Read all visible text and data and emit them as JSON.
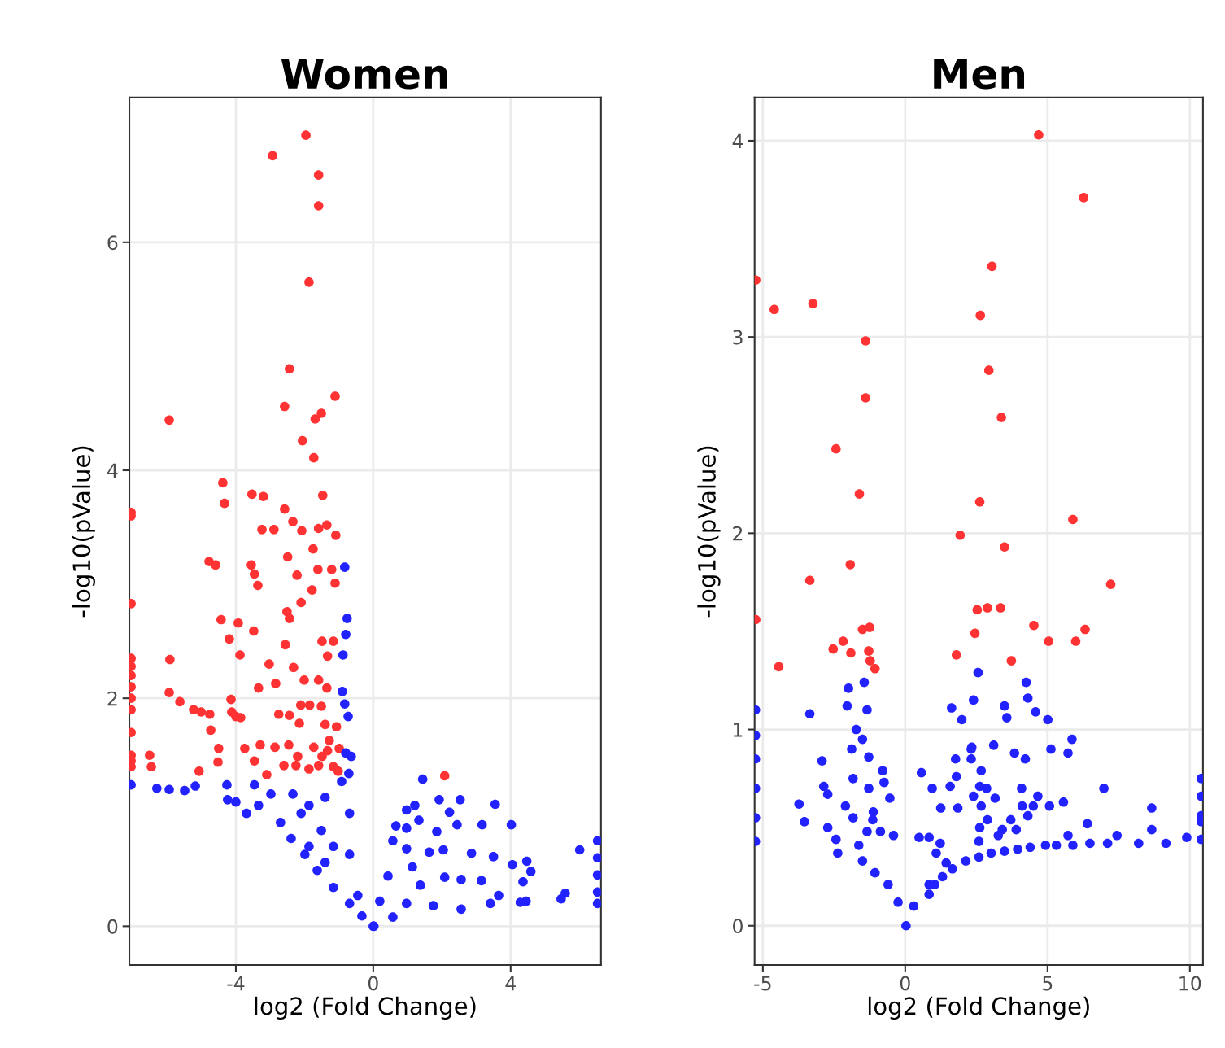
{
  "chart_data": [
    {
      "type": "scatter",
      "title": "Women",
      "xlabel": "log2 (Fold Change)",
      "ylabel": "-log10(pValue)",
      "xlim": [
        -7.1,
        6.63
      ],
      "ylim": [
        -0.34,
        7.27
      ],
      "xticks": [
        -4,
        0,
        4
      ],
      "yticks": [
        0,
        2,
        4,
        6
      ],
      "grid": true,
      "marker": "circle",
      "series": [
        {
          "color": "#ff3333",
          "x": [
            -1.96,
            -2.93,
            -1.59,
            -1.59,
            -1.87,
            -5.94,
            -2.44,
            -2.58,
            -1.11,
            -1.51,
            -1.69,
            -2.06,
            -1.73,
            -4.38,
            -4.33,
            -3.53,
            -3.2,
            -1.47,
            -2.58,
            -2.34,
            -3.24,
            -2.89,
            -2.08,
            -1.59,
            -1.35,
            -1.09,
            -1.75,
            -2.49,
            -4.78,
            -4.59,
            -3.55,
            -3.46,
            -3.36,
            -2.22,
            -1.61,
            -1.21,
            -1.11,
            -1.78,
            -2.1,
            -2.51,
            -2.44,
            -4.43,
            -3.93,
            -3.48,
            -4.19,
            -3.88,
            -2.56,
            -1.49,
            -1.16,
            -1.33,
            -5.92,
            -3.03,
            -2.32,
            -2.01,
            -1.59,
            -1.35,
            -3.34,
            -2.84,
            -5.94,
            -5.63,
            -5.23,
            -5.01,
            -4.76,
            -4.73,
            -4.14,
            -4.12,
            -4.0,
            -3.86,
            -2.75,
            -2.44,
            -2.11,
            -2.15,
            -1.85,
            -1.51,
            -1.4,
            -1.28,
            -1.07,
            -4.5,
            -3.74,
            -3.29,
            -2.86,
            -2.46,
            -2.2,
            -1.73,
            -1.49,
            -1.33,
            -0.99,
            -6.51,
            -6.46,
            -5.07,
            -4.52,
            -3.46,
            -3.1,
            -2.6,
            -2.25,
            -1.87,
            -1.59,
            -1.16,
            -1.02,
            2.08,
            -7.05,
            -7.05,
            -7.05,
            -7.05,
            -7.05,
            -7.05,
            -7.05,
            -7.05,
            -7.05,
            -7.05,
            -7.05,
            -7.05,
            -7.05
          ],
          "values": [
            6.94,
            6.76,
            6.59,
            6.32,
            5.65,
            4.44,
            4.89,
            4.56,
            4.65,
            4.5,
            4.45,
            4.26,
            4.11,
            3.89,
            3.71,
            3.79,
            3.77,
            3.78,
            3.66,
            3.55,
            3.48,
            3.48,
            3.47,
            3.49,
            3.52,
            3.43,
            3.31,
            3.24,
            3.2,
            3.17,
            3.17,
            3.09,
            2.99,
            3.08,
            3.13,
            3.13,
            3.01,
            2.95,
            2.84,
            2.76,
            2.7,
            2.69,
            2.66,
            2.59,
            2.52,
            2.38,
            2.47,
            2.5,
            2.5,
            2.37,
            2.34,
            2.3,
            2.27,
            2.16,
            2.16,
            2.09,
            2.09,
            2.13,
            2.05,
            1.97,
            1.9,
            1.88,
            1.86,
            1.72,
            1.99,
            1.88,
            1.84,
            1.83,
            1.86,
            1.85,
            1.94,
            1.78,
            1.94,
            1.93,
            1.77,
            1.63,
            1.75,
            1.56,
            1.56,
            1.59,
            1.57,
            1.59,
            1.49,
            1.57,
            1.49,
            1.54,
            1.56,
            1.5,
            1.4,
            1.36,
            1.44,
            1.45,
            1.33,
            1.41,
            1.41,
            1.38,
            1.41,
            1.4,
            1.36,
            1.32,
            3.63,
            3.6,
            2.83,
            2.35,
            2.28,
            2.2,
            2.1,
            2.0,
            1.9,
            1.7,
            1.5,
            1.45,
            1.4
          ]
        },
        {
          "color": "#2222ff",
          "x": [
            -7.05,
            -6.3,
            -5.94,
            -5.49,
            -5.18,
            -4.26,
            -4.24,
            -4.0,
            -3.69,
            -3.46,
            -3.34,
            -2.98,
            -2.7,
            -2.39,
            -1.99,
            -1.63,
            -1.16,
            -0.69,
            0,
            -0.33,
            -2.34,
            -1.87,
            -1.4,
            -0.92,
            -0.83,
            -0.76,
            -0.8,
            -0.88,
            -0.9,
            -0.83,
            -0.73,
            -0.8,
            -0.64,
            -0.71,
            -0.69,
            -1.51,
            -2.1,
            -1.87,
            -1.16,
            -0.69,
            -1.4,
            -0.45,
            1.44,
            1.92,
            2.53,
            3.55,
            2.22,
            2.44,
            3.17,
            4.02,
            6.01,
            2.86,
            3.5,
            4.05,
            4.47,
            4.59,
            4.36,
            4.45,
            4.28,
            5.59,
            5.47,
            3.65,
            3.41,
            3.15,
            2.56,
            1.21,
            0.97,
            1.33,
            0.66,
            0.97,
            1.85,
            0.57,
            0.97,
            2.04,
            1.63,
            1.14,
            0.43,
            2.08,
            1.37,
            0.19,
            0.97,
            1.75,
            2.56,
            0.57,
            0.02,
            6.53,
            6.53,
            6.53,
            6.53,
            6.53
          ],
          "values": [
            1.24,
            1.21,
            1.2,
            1.19,
            1.23,
            1.24,
            1.11,
            1.09,
            0.99,
            1.24,
            1.06,
            1.16,
            0.91,
            0.77,
            0.63,
            0.49,
            0.34,
            0.2,
            0.0,
            0.09,
            1.16,
            1.06,
            1.13,
            1.27,
            3.15,
            2.7,
            2.56,
            2.38,
            2.06,
            1.95,
            1.84,
            1.52,
            1.49,
            1.34,
            0.99,
            0.84,
            0.99,
            0.7,
            0.7,
            0.63,
            0.56,
            0.27,
            1.29,
            1.11,
            1.11,
            1.07,
            1.0,
            0.89,
            0.89,
            0.89,
            0.67,
            0.64,
            0.61,
            0.54,
            0.57,
            0.48,
            0.39,
            0.22,
            0.21,
            0.29,
            0.24,
            0.27,
            0.2,
            0.4,
            0.41,
            1.06,
            1.02,
            0.93,
            0.88,
            0.86,
            0.83,
            0.75,
            0.68,
            0.67,
            0.65,
            0.52,
            0.44,
            0.43,
            0.36,
            0.22,
            0.2,
            0.18,
            0.15,
            0.08,
            0.0,
            0.75,
            0.6,
            0.45,
            0.3,
            0.2
          ]
        }
      ]
    },
    {
      "type": "scatter",
      "title": "Men",
      "xlabel": "log2 (Fold Change)",
      "ylabel": "-log10(pValue)",
      "xlim": [
        -5.29,
        10.46
      ],
      "ylim": [
        -0.2,
        4.22
      ],
      "xticks": [
        -5,
        0,
        5,
        10
      ],
      "yticks": [
        0,
        1,
        2,
        3,
        4
      ],
      "grid": true,
      "marker": "circle",
      "series": [
        {
          "color": "#ff3333",
          "x": [
            4.69,
            6.27,
            -5.25,
            3.05,
            -4.6,
            -3.24,
            2.64,
            -1.39,
            2.94,
            -1.39,
            3.38,
            -2.43,
            -1.61,
            2.62,
            5.89,
            1.93,
            3.49,
            -1.93,
            7.22,
            -3.35,
            2.53,
            2.89,
            3.35,
            -5.25,
            4.52,
            -1.5,
            -1.25,
            6.32,
            2.45,
            -2.18,
            -2.53,
            -1.91,
            -1.28,
            1.8,
            5.04,
            5.99,
            3.73,
            -4.44,
            -1.23,
            -1.06
          ],
          "values": [
            4.03,
            3.71,
            3.29,
            3.36,
            3.14,
            3.17,
            3.11,
            2.98,
            2.83,
            2.69,
            2.59,
            2.43,
            2.2,
            2.16,
            2.07,
            1.99,
            1.93,
            1.84,
            1.74,
            1.76,
            1.61,
            1.62,
            1.62,
            1.56,
            1.53,
            1.51,
            1.52,
            1.51,
            1.49,
            1.45,
            1.41,
            1.39,
            1.4,
            1.38,
            1.45,
            1.45,
            1.35,
            1.32,
            1.35,
            1.31
          ]
        },
        {
          "color": "#2222ff",
          "x": [
            -5.26,
            -5.26,
            -5.26,
            -5.26,
            -5.26,
            -5.26,
            -3.35,
            -1.99,
            -1.44,
            -2.04,
            -1.34,
            -1.72,
            -1.5,
            -1.88,
            -1.28,
            -2.92,
            -1.83,
            -0.79,
            -0.74,
            -1.28,
            -2.86,
            -2.72,
            -0.54,
            -3.73,
            -3.54,
            -2.1,
            -1.12,
            -1.14,
            -1.83,
            -2.72,
            -2.43,
            -2.37,
            -1.63,
            -1.34,
            -0.87,
            -0.41,
            -1.5,
            -1.06,
            -0.6,
            -0.25,
            0.03,
            0.3,
            0.84,
            0.49,
            0.84,
            1.23,
            1.09,
            1.44,
            0.57,
            0.95,
            1.25,
            1.85,
            1.58,
            1.8,
            1.77,
            1.63,
            1.99,
            2.4,
            2.32,
            2.32,
            2.56,
            4.25,
            3.49,
            3.57,
            4.31,
            4.58,
            5.01,
            5.86,
            5.12,
            5.72,
            3.11,
            2.34,
            3.84,
            4.22,
            2.67,
            2.62,
            2.86,
            4.09,
            4.66,
            2.4,
            3.16,
            5.07,
            5.56,
            6.98,
            4.11,
            4.5,
            2.67,
            8.66,
            2.89,
            3.71,
            4.31,
            6.4,
            2.62,
            3.41,
            3.9,
            8.66,
            3.27,
            2.59,
            5.72,
            7.44,
            9.89,
            9.16,
            8.2,
            7.11,
            6.49,
            5.89,
            5.31,
            4.93,
            4.39,
            3.95,
            3.49,
            3.02,
            2.59,
            2.13,
            1.66,
            1.31,
            1.04,
            0.84,
            10.4,
            10.4,
            10.4,
            10.4,
            10.4
          ],
          "values": [
            1.1,
            0.97,
            0.85,
            0.7,
            0.55,
            0.43,
            1.08,
            1.21,
            1.24,
            1.12,
            1.1,
            1.0,
            0.95,
            0.9,
            0.86,
            0.84,
            0.75,
            0.79,
            0.73,
            0.7,
            0.71,
            0.67,
            0.65,
            0.62,
            0.53,
            0.61,
            0.58,
            0.54,
            0.55,
            0.5,
            0.44,
            0.37,
            0.41,
            0.48,
            0.48,
            0.46,
            0.33,
            0.27,
            0.21,
            0.12,
            0.0,
            0.1,
            0.21,
            0.45,
            0.45,
            0.42,
            0.37,
            0.32,
            0.78,
            0.7,
            0.6,
            0.6,
            0.71,
            0.76,
            0.85,
            1.11,
            1.05,
            1.15,
            0.9,
            0.85,
            1.29,
            1.24,
            1.12,
            1.06,
            1.16,
            1.09,
            1.05,
            0.95,
            0.9,
            0.88,
            0.92,
            0.91,
            0.88,
            0.85,
            0.79,
            0.71,
            0.7,
            0.7,
            0.66,
            0.66,
            0.65,
            0.61,
            0.63,
            0.7,
            0.61,
            0.61,
            0.61,
            0.6,
            0.54,
            0.54,
            0.56,
            0.52,
            0.5,
            0.49,
            0.49,
            0.49,
            0.46,
            0.43,
            0.46,
            0.46,
            0.45,
            0.42,
            0.42,
            0.42,
            0.42,
            0.41,
            0.41,
            0.41,
            0.4,
            0.39,
            0.38,
            0.37,
            0.35,
            0.33,
            0.29,
            0.25,
            0.21,
            0.16,
            0.75,
            0.66,
            0.56,
            0.53,
            0.44
          ]
        }
      ]
    }
  ]
}
